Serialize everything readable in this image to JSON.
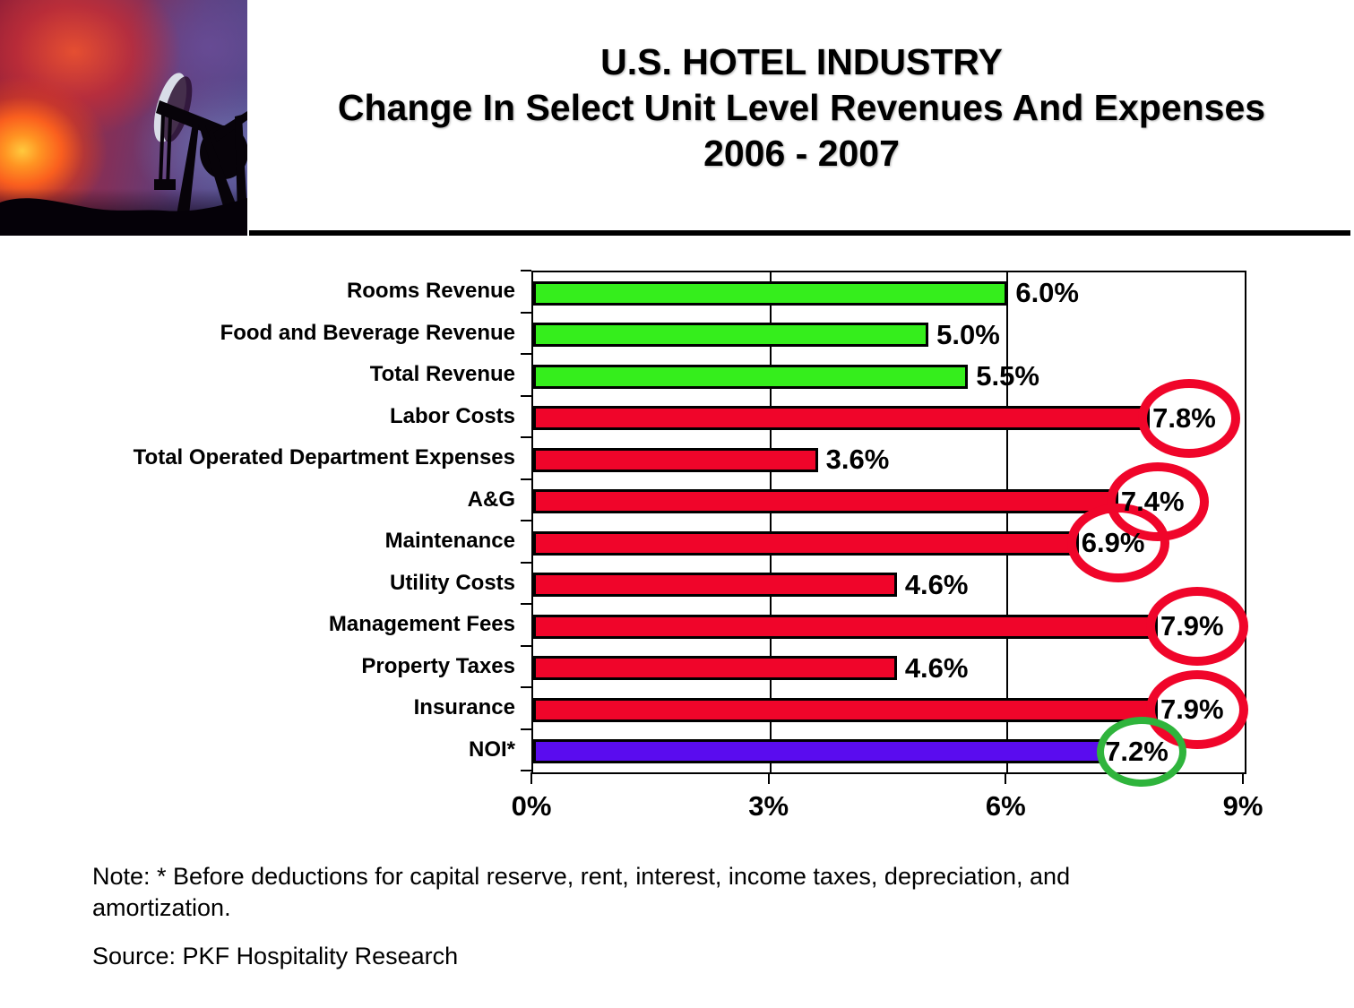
{
  "header": {
    "title_line1": "U.S. HOTEL INDUSTRY",
    "title_line2": "Change In Select Unit Level Revenues And Expenses",
    "title_line3": "2006 - 2007"
  },
  "photo": {
    "description": "sunset sky with silhouette of oil pumpjack"
  },
  "chart_data": {
    "type": "bar",
    "orientation": "horizontal",
    "title": "",
    "xlabel": "",
    "ylabel": "",
    "xlim": [
      0,
      9
    ],
    "x_tick_values": [
      0,
      3,
      6,
      9
    ],
    "x_tick_labels": [
      "0%",
      "3%",
      "6%",
      "9%"
    ],
    "grid": "vertical major gridlines at 3% and 6%",
    "legend": "none",
    "items": [
      {
        "category": "Rooms Revenue",
        "value": 6.0,
        "label": "6.0%",
        "group": "revenue",
        "circle": null
      },
      {
        "category": "Food and Beverage Revenue",
        "value": 5.0,
        "label": "5.0%",
        "group": "revenue",
        "circle": null
      },
      {
        "category": "Total Revenue",
        "value": 5.5,
        "label": "5.5%",
        "group": "revenue",
        "circle": null
      },
      {
        "category": "Labor Costs",
        "value": 7.8,
        "label": "7.8%",
        "group": "expense",
        "circle": "red"
      },
      {
        "category": "Total Operated Department Expenses",
        "value": 3.6,
        "label": "3.6%",
        "group": "expense",
        "circle": null
      },
      {
        "category": "A&G",
        "value": 7.4,
        "label": "7.4%",
        "group": "expense",
        "circle": "red"
      },
      {
        "category": "Maintenance",
        "value": 6.9,
        "label": "6.9%",
        "group": "expense",
        "circle": "red"
      },
      {
        "category": "Utility Costs",
        "value": 4.6,
        "label": "4.6%",
        "group": "expense",
        "circle": null
      },
      {
        "category": "Management Fees",
        "value": 7.9,
        "label": "7.9%",
        "group": "expense",
        "circle": "red"
      },
      {
        "category": "Property Taxes",
        "value": 4.6,
        "label": "4.6%",
        "group": "expense",
        "circle": null
      },
      {
        "category": "Insurance",
        "value": 7.9,
        "label": "7.9%",
        "group": "expense",
        "circle": "red"
      },
      {
        "category": "NOI*",
        "value": 7.2,
        "label": "7.2%",
        "group": "noi",
        "circle": "green"
      }
    ],
    "colors": {
      "revenue": "#35ee1c",
      "expense": "#f0052a",
      "noi": "#5a0cef",
      "circle_red": "#f0052a",
      "circle_green": "#2fb43c",
      "axis": "#000000"
    }
  },
  "footer": {
    "note": "Note: * Before deductions for capital reserve, rent, interest, income taxes, depreciation, and amortization.",
    "source": "Source: PKF Hospitality Research"
  }
}
